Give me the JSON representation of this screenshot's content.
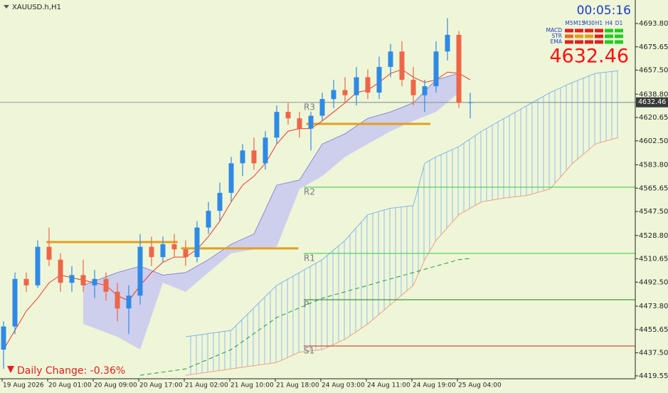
{
  "chart_data": {
    "type": "candlestick",
    "title": "XAUUSD.h,H1",
    "categories": [
      "19 Aug 2026",
      null,
      null,
      null,
      "20 Aug 01:00",
      null,
      null,
      null,
      "20 Aug 09:00",
      null,
      null,
      null,
      "20 Aug 17:00",
      null,
      null,
      null,
      "21 Aug 02:00",
      null,
      null,
      null,
      "21 Aug 10:00",
      null,
      null,
      null,
      "21 Aug 18:00",
      null,
      null,
      null,
      "24 Aug 03:00",
      null,
      null,
      null,
      "24 Aug 11:00",
      null,
      null,
      null,
      "24 Aug 19:00",
      null,
      null,
      null,
      "25 Aug 04:00",
      null
    ],
    "open": [
      4440,
      4458,
      4495,
      4490,
      4520,
      4510,
      4492,
      4498,
      4490,
      4495,
      4485,
      4472,
      4482,
      4520,
      4512,
      4522,
      4518,
      4512,
      4535,
      4548,
      4562,
      4585,
      4595,
      4585,
      4605,
      4625,
      4620,
      4612,
      4622,
      4635,
      4642,
      4638,
      4652,
      4640,
      4660,
      4672,
      4650,
      4638,
      4645,
      4672,
      4685,
      4632
    ],
    "high": [
      4462,
      4500,
      4500,
      4525,
      4535,
      4515,
      4505,
      4510,
      4502,
      4500,
      4492,
      4490,
      4530,
      4528,
      4528,
      4530,
      4525,
      4540,
      4555,
      4570,
      4590,
      4600,
      4605,
      4610,
      4630,
      4632,
      4625,
      4625,
      4640,
      4650,
      4652,
      4660,
      4658,
      4668,
      4678,
      4680,
      4660,
      4650,
      4680,
      4698,
      4688,
      4640
    ],
    "low": [
      4425,
      4452,
      4485,
      4488,
      4505,
      4485,
      4485,
      4485,
      4480,
      4478,
      4462,
      4452,
      4475,
      4505,
      4508,
      4512,
      4505,
      4508,
      4530,
      4540,
      4555,
      4575,
      4580,
      4580,
      4600,
      4615,
      4605,
      4595,
      4618,
      4628,
      4632,
      4630,
      4635,
      4635,
      4652,
      4645,
      4630,
      4625,
      4640,
      4665,
      4628,
      4620
    ],
    "close": [
      4458,
      4495,
      4490,
      4520,
      4510,
      4492,
      4498,
      4490,
      4495,
      4485,
      4472,
      4482,
      4520,
      4512,
      4522,
      4518,
      4512,
      4535,
      4548,
      4562,
      4585,
      4595,
      4585,
      4605,
      4625,
      4620,
      4612,
      4622,
      4635,
      4642,
      4638,
      4652,
      4640,
      4660,
      4672,
      4650,
      4638,
      4645,
      4672,
      4685,
      4632,
      4632.46
    ],
    "up_color": "#2f8ae6",
    "down_color": "#ef6548",
    "ylim": [
      4417.3,
      4712.1
    ],
    "yticks": [
      {
        "value": 4693.8,
        "label": "4693.80"
      },
      {
        "value": 4675.65,
        "label": "4675.65"
      },
      {
        "value": 4657.5,
        "label": "4657.50"
      },
      {
        "value": 4638.8,
        "label": "4638.80"
      },
      {
        "value": 4620.65,
        "label": "4620.65"
      },
      {
        "value": 4602.5,
        "label": "4602.50"
      },
      {
        "value": 4583.8,
        "label": "4583.80"
      },
      {
        "value": 4565.65,
        "label": "4565.65"
      },
      {
        "value": 4547.5,
        "label": "4547.50"
      },
      {
        "value": 4528.8,
        "label": "4528.80"
      },
      {
        "value": 4510.65,
        "label": "4510.65"
      },
      {
        "value": 4492.5,
        "label": "4492.50"
      },
      {
        "value": 4473.8,
        "label": "4473.80"
      },
      {
        "value": 4455.65,
        "label": "4455.65"
      },
      {
        "value": 4437.5,
        "label": "4437.50"
      },
      {
        "value": 4419.55,
        "label": "4419.55"
      }
    ],
    "ema": {
      "color": "#e8392b",
      "values": [
        4440,
        4455,
        4470,
        4480,
        4492,
        4498,
        4496,
        4494,
        4492,
        4490,
        4482,
        4478,
        4490,
        4500,
        4508,
        4512,
        4512,
        4518,
        4528,
        4540,
        4555,
        4568,
        4575,
        4585,
        4600,
        4610,
        4612,
        4612,
        4618,
        4625,
        4632,
        4640,
        4642,
        4648,
        4655,
        4658,
        4652,
        4648,
        4650,
        4656,
        4655,
        4650
      ]
    },
    "chikou": {
      "color": "#1e9a3c",
      "x": [
        12,
        16,
        20,
        24,
        28,
        32,
        36,
        40,
        41
      ],
      "values": [
        4420,
        4425,
        4440,
        4465,
        4480,
        4490,
        4500,
        4510,
        4511
      ]
    },
    "cloud_past": {
      "color": "#c8c8f0",
      "x": [
        7,
        10,
        12,
        14,
        16,
        18,
        20,
        22,
        24,
        26,
        28,
        30,
        32,
        34,
        36,
        38,
        40
      ],
      "upper": [
        4490,
        4500,
        4505,
        4498,
        4500,
        4510,
        4522,
        4530,
        4568,
        4572,
        4600,
        4608,
        4620,
        4625,
        4632,
        4650,
        4655
      ],
      "lower": [
        4460,
        4450,
        4440,
        4492,
        4485,
        4500,
        4515,
        4518,
        4520,
        4565,
        4575,
        4590,
        4600,
        4610,
        4618,
        4625,
        4640
      ]
    },
    "cloud_future": {
      "upper_color": "#7fb6ec",
      "lower_color": "#f0a080",
      "x": [
        16,
        20,
        24,
        26,
        28,
        30,
        32,
        34,
        36,
        37,
        38,
        40,
        42,
        44,
        46,
        48,
        50,
        52,
        54
      ],
      "upper": [
        4450,
        4455,
        4490,
        4500,
        4510,
        4525,
        4545,
        4550,
        4552,
        4585,
        4590,
        4598,
        4610,
        4620,
        4630,
        4640,
        4648,
        4655,
        4657
      ],
      "lower": [
        4420,
        4425,
        4430,
        4438,
        4440,
        4448,
        4460,
        4475,
        4490,
        4510,
        4525,
        4545,
        4555,
        4558,
        4560,
        4565,
        4585,
        4600,
        4605
      ]
    },
    "pivots": [
      {
        "name": "R3",
        "value": 4632.3,
        "color": "#9aa6a6"
      },
      {
        "name": "R2",
        "value": 4566.4,
        "color": "#2ecc40"
      },
      {
        "name": "R1",
        "value": 4514.9,
        "color": "#2ecc40"
      },
      {
        "name": "P",
        "value": 4478.8,
        "color": "#1a7a1a"
      },
      {
        "name": "S1",
        "value": 4442.8,
        "color": "#d02020"
      }
    ],
    "sr_lines": [
      {
        "value": 4523.7,
        "from": 3.75,
        "to": 15.3,
        "color": "#e0a020"
      },
      {
        "value": 4518.8,
        "from": 15.6,
        "to": 25.9,
        "color": "#e0a020"
      },
      {
        "value": 4615.7,
        "from": 26.6,
        "to": 37.5,
        "color": "#e0a020"
      }
    ],
    "last_price": 4632.46,
    "timer": "00:05:16",
    "daily_change": "Daily Change: -0.36%",
    "signals": {
      "timeframes": [
        "M5",
        "M15",
        "M30",
        "H1",
        "H4",
        "D1"
      ],
      "rows": [
        {
          "name": "MACD",
          "colors": [
            "#e02020",
            "#e02020",
            "#e02020",
            "#e02020",
            "#22cc22",
            "#22cc22"
          ]
        },
        {
          "name": "STR",
          "colors": [
            "#e07020",
            "#e0a020",
            "#e0a020",
            "#e02020",
            "#22cc22",
            "#22cc22"
          ]
        },
        {
          "name": "EMA",
          "colors": [
            "#e02020",
            "#e02020",
            "#e02020",
            "#e02020",
            "#22cc22",
            "#22cc22"
          ]
        }
      ]
    }
  }
}
